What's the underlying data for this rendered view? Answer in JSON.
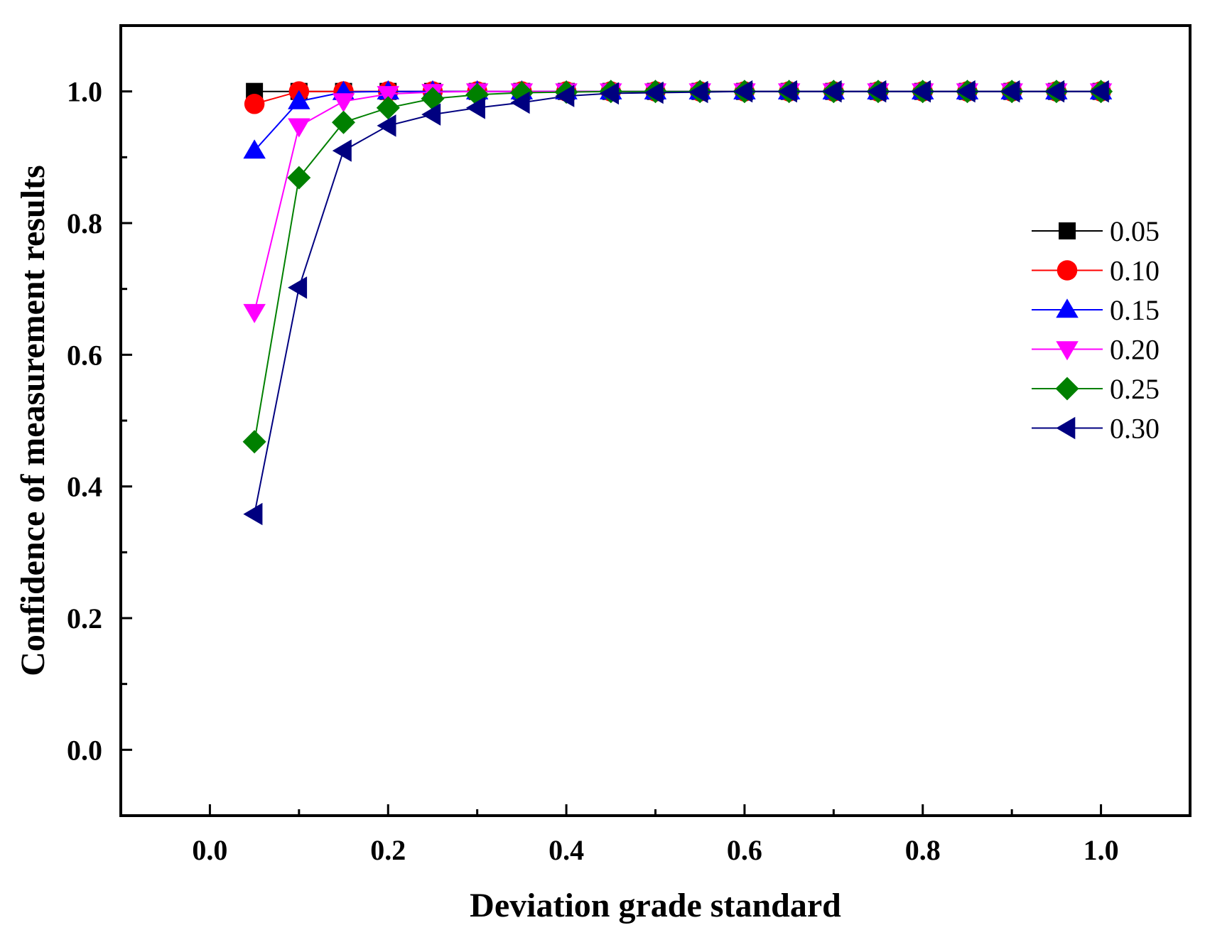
{
  "chart_data": {
    "type": "line",
    "title": "",
    "xlabel": "Deviation grade standard",
    "ylabel": "Confidence of measurement results",
    "xlim": [
      -0.1,
      1.1
    ],
    "ylim": [
      -0.1,
      1.1
    ],
    "x_ticks": [
      0.0,
      0.2,
      0.4,
      0.6,
      0.8,
      1.0
    ],
    "x_tick_labels": [
      "0.0",
      "0.2",
      "0.4",
      "0.6",
      "0.8",
      "1.0"
    ],
    "y_ticks": [
      0.0,
      0.2,
      0.4,
      0.6,
      0.8,
      1.0
    ],
    "y_tick_labels": [
      "0.0",
      "0.2",
      "0.4",
      "0.6",
      "0.8",
      "1.0"
    ],
    "grid": false,
    "legend_position": "right",
    "x": [
      0.05,
      0.1,
      0.15,
      0.2,
      0.25,
      0.3,
      0.35,
      0.4,
      0.45,
      0.5,
      0.55,
      0.6,
      0.65,
      0.7,
      0.75,
      0.8,
      0.85,
      0.9,
      0.95,
      1.0
    ],
    "series": [
      {
        "name": "0.05",
        "color": "#000000",
        "marker": "square",
        "values": [
          1.0,
          1.0,
          1.0,
          1.0,
          1.0,
          1.0,
          1.0,
          1.0,
          1.0,
          1.0,
          1.0,
          1.0,
          1.0,
          1.0,
          1.0,
          1.0,
          1.0,
          1.0,
          1.0,
          1.0
        ]
      },
      {
        "name": "0.10",
        "color": "#ff0000",
        "marker": "circle",
        "values": [
          0.981,
          1.0,
          1.0,
          1.0,
          1.0,
          1.0,
          1.0,
          1.0,
          1.0,
          1.0,
          1.0,
          1.0,
          1.0,
          1.0,
          1.0,
          1.0,
          1.0,
          1.0,
          1.0,
          1.0
        ]
      },
      {
        "name": "0.15",
        "color": "#0000ff",
        "marker": "triangle-up",
        "values": [
          0.91,
          0.985,
          0.999,
          1.0,
          1.0,
          1.0,
          1.0,
          1.0,
          1.0,
          1.0,
          1.0,
          1.0,
          1.0,
          1.0,
          1.0,
          1.0,
          1.0,
          1.0,
          1.0,
          1.0
        ]
      },
      {
        "name": "0.20",
        "color": "#ff00ff",
        "marker": "triangle-down",
        "values": [
          0.665,
          0.947,
          0.985,
          0.996,
          0.999,
          1.0,
          1.0,
          1.0,
          1.0,
          1.0,
          1.0,
          1.0,
          1.0,
          1.0,
          1.0,
          1.0,
          1.0,
          1.0,
          1.0,
          1.0
        ]
      },
      {
        "name": "0.25",
        "color": "#008000",
        "marker": "diamond",
        "values": [
          0.468,
          0.869,
          0.953,
          0.975,
          0.989,
          0.995,
          0.998,
          0.999,
          1.0,
          1.0,
          1.0,
          1.0,
          1.0,
          1.0,
          1.0,
          1.0,
          1.0,
          1.0,
          1.0,
          1.0
        ]
      },
      {
        "name": "0.30",
        "color": "#000080",
        "marker": "triangle-left",
        "values": [
          0.358,
          0.702,
          0.91,
          0.948,
          0.965,
          0.975,
          0.983,
          0.993,
          0.997,
          0.998,
          0.999,
          1.0,
          1.0,
          1.0,
          1.0,
          1.0,
          1.0,
          1.0,
          1.0,
          1.0
        ]
      }
    ]
  }
}
